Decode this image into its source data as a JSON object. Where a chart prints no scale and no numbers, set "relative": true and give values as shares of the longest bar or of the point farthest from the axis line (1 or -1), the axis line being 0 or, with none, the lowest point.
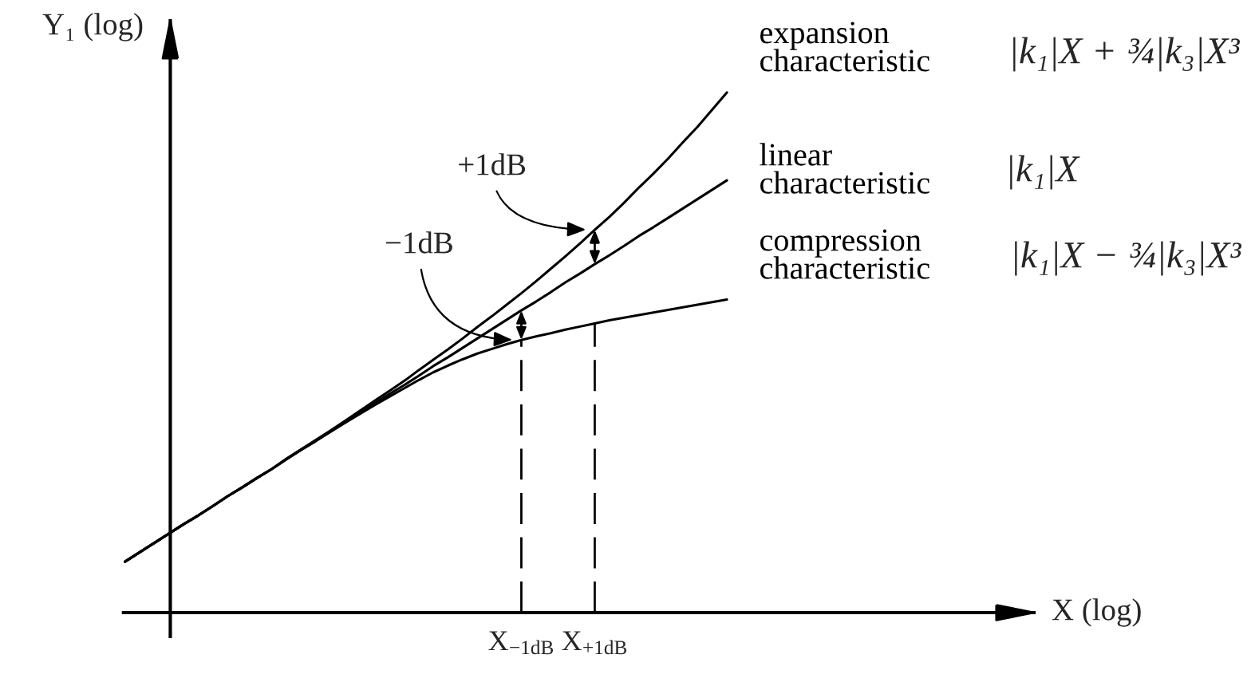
{
  "chart_data": {
    "type": "line",
    "relative": true,
    "ylabel": "Y₁ (log)",
    "tick_labels": "x",
    "categories": [
      null,
      null,
      null,
      null,
      null,
      null,
      null,
      null,
      null,
      null,
      null,
      null,
      null,
      null,
      null,
      null,
      null,
      null,
      null,
      null,
      null,
      null,
      null,
      null,
      null,
      null,
      null,
      "X$_{−1dB}$",
      null,
      null,
      null,
      null,
      "X$_{+1dB}$",
      null,
      null,
      null,
      null,
      null,
      null,
      null,
      null,
      null
    ],
    "series": [
      {
        "name": "expansion\ncharacteristic",
        "color": "#000000",
        "values": [
          0.098,
          0.116,
          0.134,
          0.152,
          0.17,
          0.187,
          0.205,
          0.224,
          0.241,
          0.259,
          0.276,
          0.296,
          0.314,
          0.332,
          0.35,
          0.369,
          0.388,
          0.407,
          0.426,
          0.445,
          0.466,
          0.486,
          0.506,
          0.527,
          0.549,
          0.57,
          0.592,
          0.614,
          0.637,
          0.661,
          0.685,
          0.71,
          0.736,
          0.761,
          0.788,
          0.817,
          0.844,
          0.873,
          0.904,
          0.934,
          0.967,
          1.0
        ]
      },
      {
        "name": "linear\ncharacteristic",
        "color": "#000000",
        "values": [
          0.098,
          0.116,
          0.134,
          0.152,
          0.17,
          0.187,
          0.205,
          0.224,
          0.241,
          0.259,
          0.276,
          0.295,
          0.313,
          0.33,
          0.348,
          0.366,
          0.384,
          0.402,
          0.42,
          0.437,
          0.455,
          0.474,
          0.491,
          0.509,
          0.527,
          0.545,
          0.563,
          0.581,
          0.598,
          0.616,
          0.635,
          0.652,
          0.67,
          0.687,
          0.705,
          0.724,
          0.741,
          0.759,
          0.777,
          0.795,
          0.813,
          0.831
        ]
      },
      {
        "name": "compression\ncharacteristic",
        "color": "#000000",
        "values": [
          0.098,
          0.116,
          0.134,
          0.152,
          0.17,
          0.187,
          0.205,
          0.224,
          0.241,
          0.259,
          0.276,
          0.295,
          0.313,
          0.33,
          0.348,
          0.365,
          0.382,
          0.399,
          0.415,
          0.431,
          0.447,
          0.462,
          0.475,
          0.487,
          0.498,
          0.507,
          0.516,
          0.524,
          0.531,
          0.537,
          0.544,
          0.55,
          0.556,
          0.562,
          0.567,
          0.572,
          0.577,
          0.582,
          0.587,
          0.592,
          0.597,
          0.602
        ]
      }
    ],
    "ref_lines": [
      {
        "axis": "x",
        "value": "X$_{−1dB}$",
        "color": "#000000",
        "line_style": "dashed"
      },
      {
        "axis": "x",
        "value": "X$_{+1dB}$",
        "color": "#000000",
        "line_style": "dashed"
      }
    ],
    "annotations": [
      "|k₁|X + ¾|k₃|X³",
      "|k₁|X",
      "|k₁|X − ¾|k₃|X³",
      "X (log)",
      {
        "text": "+1dB",
        "x": "X$_{+1dB}$",
        "y": 0.736
      },
      {
        "text": "−1dB",
        "x": "X$_{−1dB}$",
        "y": 0.524
      }
    ]
  }
}
